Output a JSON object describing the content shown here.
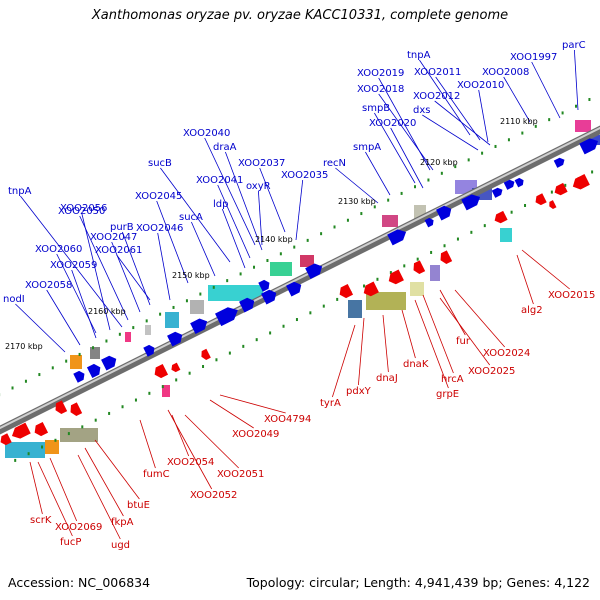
{
  "title": "Xanthomonas oryzae pv. oryzae KACC10331, complete genome",
  "footer": {
    "accession": "Accession: NC_006834",
    "summary": "Topology: circular; Length: 4,941,439 bp; Genes: 4,122"
  },
  "ticks": [
    "2110 kbp",
    "2120 kbp",
    "2130 kbp",
    "2140 kbp",
    "2150 kbp",
    "2160 kbp",
    "2170 kbp"
  ],
  "top_strand_genes": [
    "parC",
    "XOO1997",
    "XOO2008",
    "tnpA",
    "XOO2011",
    "XOO2010",
    "XOO2019",
    "XOO2018",
    "XOO2012",
    "smpB",
    "dxs",
    "XOO2020",
    "smpA",
    "recN",
    "XOO2035",
    "XOO2037",
    "XOO2040",
    "draA",
    "oxyR",
    "sucB",
    "XOO2041",
    "ldp",
    "sucA",
    "XOO2045",
    "XOO2046",
    "purB",
    "XOO2047",
    "XOO2050",
    "tnpA",
    "XOO2056",
    "XOO2060",
    "XOO2059",
    "XOO2058",
    "XOO2061",
    "nodI"
  ],
  "bottom_strand_genes": [
    "alg2",
    "XOO2015",
    "fur",
    "XOO2024",
    "XOO2025",
    "hrcA",
    "grpE",
    "dnaK",
    "dnaJ",
    "pdxY",
    "tyrA",
    "XOO4794",
    "XOO2049",
    "XOO2054",
    "XOO2051",
    "XOO2052",
    "fumC",
    "btuE",
    "fkpA",
    "ugd",
    "XOO2069",
    "fucP",
    "scrK"
  ],
  "colors": {
    "forward_arrow": "#0000dd",
    "reverse_arrow": "#ee0000",
    "label_forward": "#0000cc",
    "label_reverse": "#cc0000",
    "backbone": "#888888",
    "tick": "#228822"
  }
}
